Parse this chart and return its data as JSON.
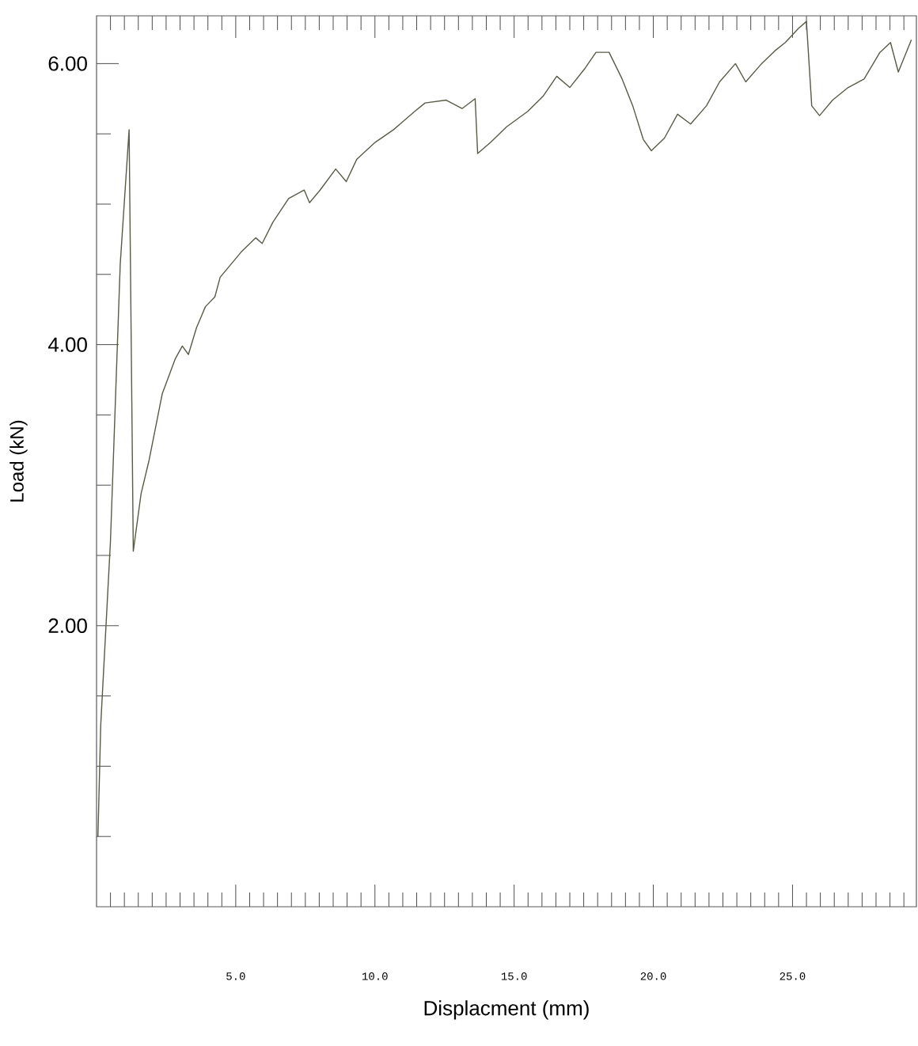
{
  "chart_data": {
    "type": "line",
    "xlabel": "Displacment (mm)",
    "ylabel": "Load (kN)",
    "xlim": [
      0,
      29.45
    ],
    "ylim": [
      0,
      6.34
    ],
    "xticks": [
      {
        "value": 0.5,
        "label": null
      },
      {
        "value": 1,
        "label": null
      },
      {
        "value": 1.5,
        "label": null
      },
      {
        "value": 2,
        "label": null
      },
      {
        "value": 2.5,
        "label": null
      },
      {
        "value": 3,
        "label": null
      },
      {
        "value": 3.5,
        "label": null
      },
      {
        "value": 4,
        "label": null
      },
      {
        "value": 4.5,
        "label": null
      },
      {
        "value": 5,
        "label": "5.0"
      },
      {
        "value": 5.5,
        "label": null
      },
      {
        "value": 6,
        "label": null
      },
      {
        "value": 6.5,
        "label": null
      },
      {
        "value": 7,
        "label": null
      },
      {
        "value": 7.5,
        "label": null
      },
      {
        "value": 8,
        "label": null
      },
      {
        "value": 8.5,
        "label": null
      },
      {
        "value": 9,
        "label": null
      },
      {
        "value": 9.5,
        "label": null
      },
      {
        "value": 10,
        "label": "10.0"
      },
      {
        "value": 10.5,
        "label": null
      },
      {
        "value": 11,
        "label": null
      },
      {
        "value": 11.5,
        "label": null
      },
      {
        "value": 12,
        "label": null
      },
      {
        "value": 12.5,
        "label": null
      },
      {
        "value": 13,
        "label": null
      },
      {
        "value": 13.5,
        "label": null
      },
      {
        "value": 14,
        "label": null
      },
      {
        "value": 14.5,
        "label": null
      },
      {
        "value": 15,
        "label": "15.0"
      },
      {
        "value": 15.5,
        "label": null
      },
      {
        "value": 16,
        "label": null
      },
      {
        "value": 16.5,
        "label": null
      },
      {
        "value": 17,
        "label": null
      },
      {
        "value": 17.5,
        "label": null
      },
      {
        "value": 18,
        "label": null
      },
      {
        "value": 18.5,
        "label": null
      },
      {
        "value": 19,
        "label": null
      },
      {
        "value": 19.5,
        "label": null
      },
      {
        "value": 20,
        "label": "20.0"
      },
      {
        "value": 20.5,
        "label": null
      },
      {
        "value": 21,
        "label": null
      },
      {
        "value": 21.5,
        "label": null
      },
      {
        "value": 22,
        "label": null
      },
      {
        "value": 22.5,
        "label": null
      },
      {
        "value": 23,
        "label": null
      },
      {
        "value": 23.5,
        "label": null
      },
      {
        "value": 24,
        "label": null
      },
      {
        "value": 24.5,
        "label": null
      },
      {
        "value": 25,
        "label": "25.0"
      },
      {
        "value": 25.5,
        "label": null
      },
      {
        "value": 26,
        "label": null
      },
      {
        "value": 26.5,
        "label": null
      },
      {
        "value": 27,
        "label": null
      },
      {
        "value": 27.5,
        "label": null
      },
      {
        "value": 28,
        "label": null
      },
      {
        "value": 28.5,
        "label": null
      },
      {
        "value": 29,
        "label": null
      }
    ],
    "yticks": [
      {
        "value": 0.5,
        "label": null
      },
      {
        "value": 1,
        "label": null
      },
      {
        "value": 1.5,
        "label": null
      },
      {
        "value": 2,
        "label": "2.00"
      },
      {
        "value": 2.5,
        "label": null
      },
      {
        "value": 3,
        "label": null
      },
      {
        "value": 3.5,
        "label": null
      },
      {
        "value": 4,
        "label": "4.00"
      },
      {
        "value": 4.5,
        "label": null
      },
      {
        "value": 5,
        "label": null
      },
      {
        "value": 5.5,
        "label": null
      },
      {
        "value": 6,
        "label": "6.00"
      }
    ],
    "marker": "none",
    "line_style": "solid",
    "series": [
      {
        "color": "#5a5a48",
        "x": [
          0.05,
          0.15,
          0.5,
          0.85,
          1.17,
          1.32,
          1.6,
          1.89,
          2.36,
          2.83,
          3.08,
          3.3,
          3.59,
          3.91,
          4.25,
          4.44,
          4.82,
          5.2,
          5.72,
          5.95,
          6.33,
          6.9,
          7.46,
          7.65,
          8.03,
          8.59,
          8.97,
          9.35,
          10.01,
          10.67,
          11.43,
          11.8,
          12.56,
          13.13,
          13.6,
          13.69,
          14.16,
          14.73,
          15.49,
          16.05,
          16.53,
          17.0,
          17.56,
          17.94,
          18.41,
          18.88,
          19.26,
          19.64,
          19.93,
          20.4,
          20.87,
          21.34,
          21.91,
          22.38,
          22.95,
          23.32,
          23.89,
          24.36,
          24.74,
          25.21,
          25.5,
          25.69,
          25.97,
          26.44,
          27.0,
          27.57,
          28.14,
          28.52,
          28.8,
          29.27
        ],
        "values": [
          0.5,
          1.29,
          2.6,
          4.57,
          5.53,
          2.53,
          2.94,
          3.18,
          3.65,
          3.9,
          3.99,
          3.93,
          4.12,
          4.27,
          4.34,
          4.48,
          4.57,
          4.66,
          4.76,
          4.72,
          4.87,
          5.04,
          5.1,
          5.01,
          5.1,
          5.25,
          5.16,
          5.32,
          5.44,
          5.53,
          5.66,
          5.72,
          5.74,
          5.68,
          5.75,
          5.36,
          5.44,
          5.55,
          5.66,
          5.77,
          5.91,
          5.83,
          5.97,
          6.08,
          6.08,
          5.89,
          5.7,
          5.46,
          5.38,
          5.47,
          5.64,
          5.57,
          5.7,
          5.87,
          6.0,
          5.87,
          6.0,
          6.09,
          6.15,
          6.25,
          6.3,
          5.7,
          5.63,
          5.74,
          5.83,
          5.89,
          6.08,
          6.15,
          5.94,
          6.17
        ]
      }
    ]
  }
}
